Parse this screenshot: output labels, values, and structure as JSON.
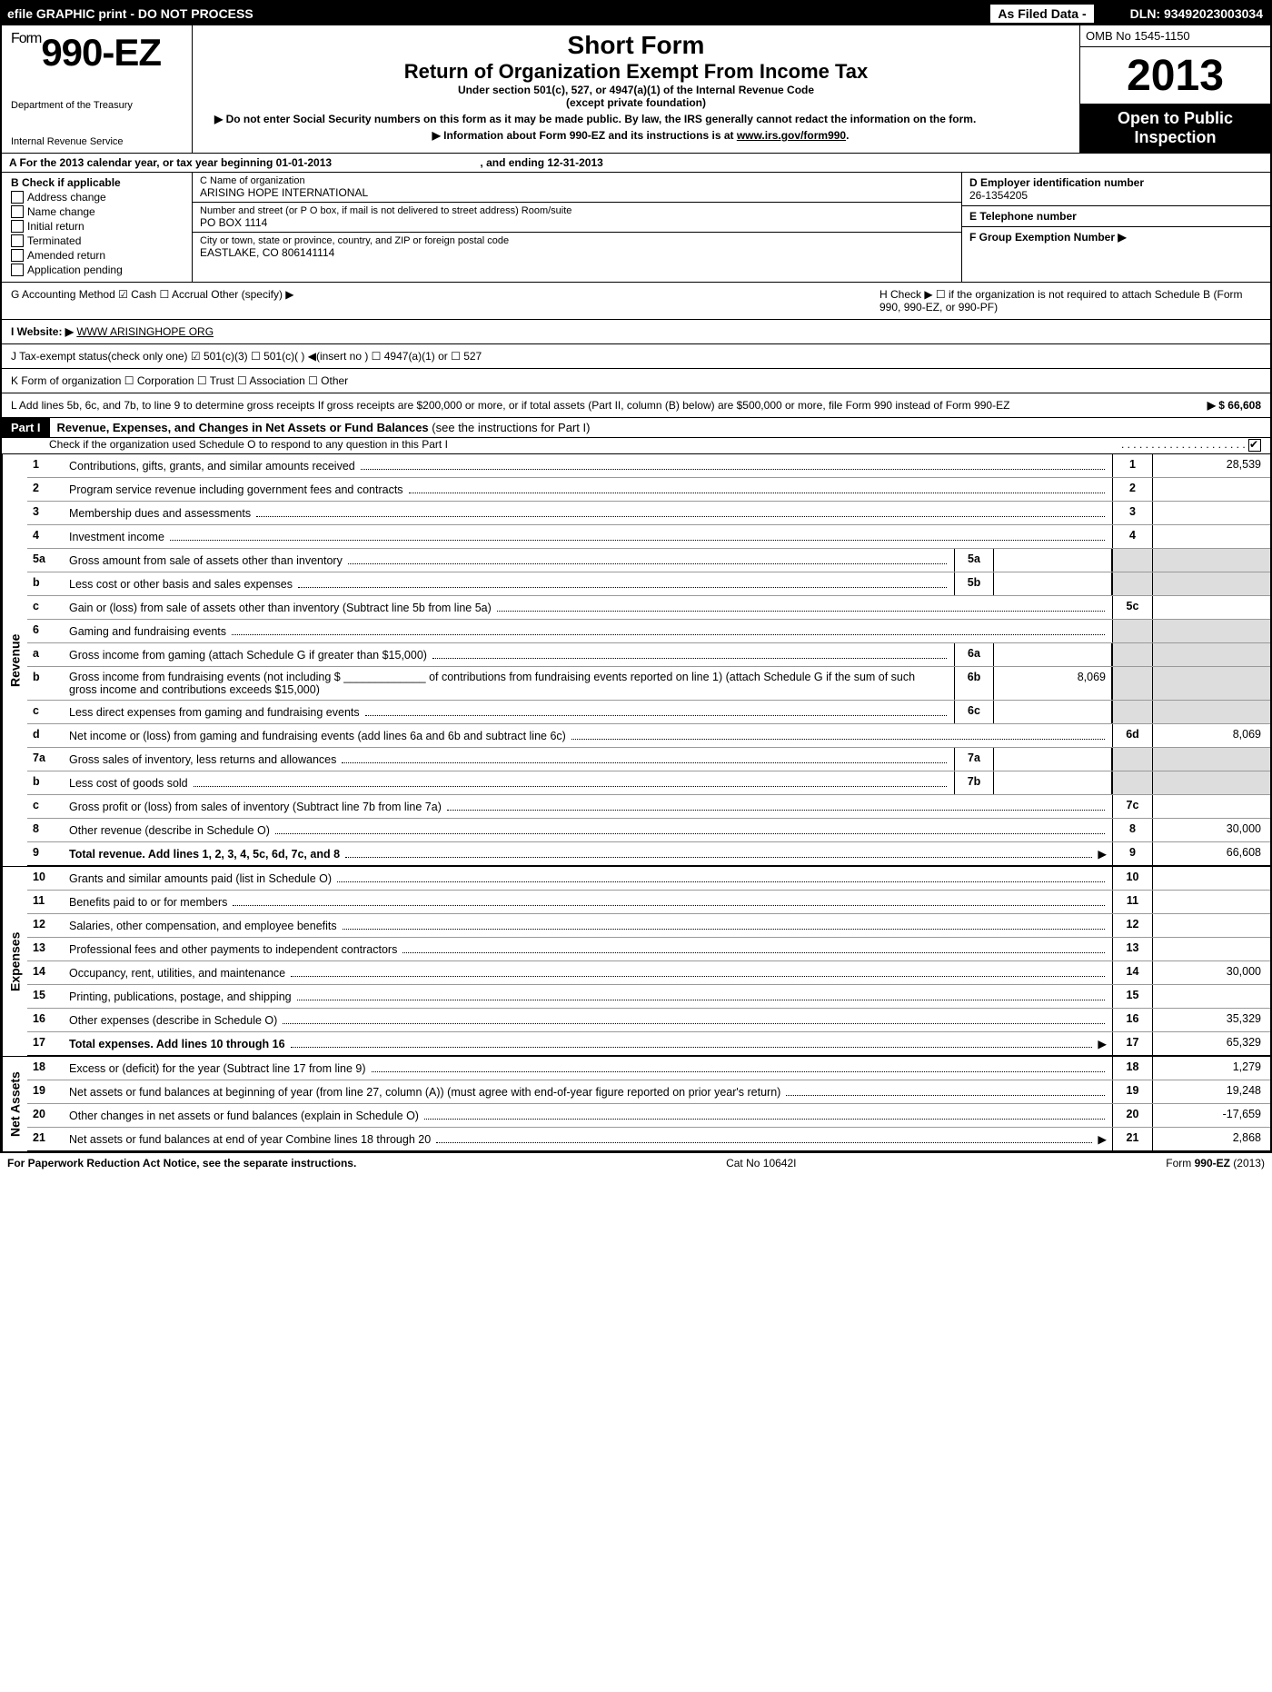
{
  "topbar": {
    "left": "efile GRAPHIC print - DO NOT PROCESS",
    "mid": "As Filed Data -",
    "right": "DLN: 93492023003034"
  },
  "header": {
    "form_prefix": "Form",
    "form_number": "990-EZ",
    "dept1": "Department of the Treasury",
    "dept2": "Internal Revenue Service",
    "title1": "Short Form",
    "title2": "Return of Organization Exempt From Income Tax",
    "sub1": "Under section 501(c), 527, or 4947(a)(1) of the Internal Revenue Code",
    "sub2": "(except private foundation)",
    "note1": "Do not enter Social Security numbers on this form as it may be made public. By law, the IRS generally cannot redact the information on the form.",
    "note2": "Information about Form 990-EZ and its instructions is at ",
    "note2_link": "www.irs.gov/form990",
    "omb": "OMB No  1545-1150",
    "year": "2013",
    "inspect1": "Open to Public",
    "inspect2": "Inspection"
  },
  "rowA": {
    "label": "A  For the 2013 calendar year, or tax year beginning 01-01-2013",
    "ending": ", and ending 12-31-2013"
  },
  "sectionB": {
    "title": "B  Check if applicable",
    "items": [
      "Address change",
      "Name change",
      "Initial return",
      "Terminated",
      "Amended return",
      "Application pending"
    ]
  },
  "sectionC": {
    "name_lbl": "C Name of organization",
    "name": "ARISING HOPE INTERNATIONAL",
    "street_lbl": "Number and street (or P  O  box, if mail is not delivered to street address) Room/suite",
    "street": "PO BOX 1114",
    "city_lbl": "City or town, state or province, country, and ZIP or foreign postal code",
    "city": "EASTLAKE, CO   806141114"
  },
  "sectionD": {
    "lbl": "D Employer identification number",
    "val": "26-1354205"
  },
  "sectionE": {
    "lbl": "E Telephone number",
    "val": ""
  },
  "sectionF": {
    "lbl": "F Group Exemption Number   ▶",
    "val": ""
  },
  "rowG": "G Accounting Method      ☑ Cash   ☐ Accrual    Other (specify) ▶",
  "rowH": "H   Check ▶  ☐  if the organization is not required to attach Schedule B (Form 990, 990-EZ, or 990-PF)",
  "rowI": {
    "lbl": "I Website: ▶ ",
    "val": "WWW ARISINGHOPE ORG"
  },
  "rowJ": "J Tax-exempt status(check only one) ☑ 501(c)(3)  ☐ 501(c)(  ) ◀(insert no ) ☐ 4947(a)(1) or ☐ 527",
  "rowK": "K Form of organization    ☐ Corporation  ☐ Trust  ☐ Association  ☐ Other",
  "rowL": {
    "txt": "L Add lines 5b, 6c, and 7b, to line 9 to determine gross receipts  If gross receipts are $200,000 or more, or if total assets (Part II, column (B) below) are $500,000 or more, file Form 990 instead of Form 990-EZ",
    "val": "▶ $ 66,608"
  },
  "partI": {
    "tag": "Part I",
    "title": "Revenue, Expenses, and Changes in Net Assets or Fund Balances",
    "note": "(see the instructions for Part I)",
    "sub": "Check if the organization used Schedule O to respond to any question in this Part I"
  },
  "sections": [
    {
      "side": "Revenue",
      "lines": [
        {
          "n": "1",
          "txt": "Contributions, gifts, grants, and similar amounts received",
          "box": "1",
          "val": "28,539"
        },
        {
          "n": "2",
          "txt": "Program service revenue including government fees and contracts",
          "box": "2",
          "val": ""
        },
        {
          "n": "3",
          "txt": "Membership dues and assessments",
          "box": "3",
          "val": ""
        },
        {
          "n": "4",
          "txt": "Investment income",
          "box": "4",
          "val": ""
        },
        {
          "n": "5a",
          "txt": "Gross amount from sale of assets other than inventory",
          "inset_box": "5a",
          "inset_val": "",
          "grey": true
        },
        {
          "n": "b",
          "txt": "Less  cost or other basis and sales expenses",
          "inset_box": "5b",
          "inset_val": "",
          "grey": true
        },
        {
          "n": "c",
          "txt": "Gain or (loss) from sale of assets other than inventory (Subtract line 5b from line 5a)",
          "box": "5c",
          "val": ""
        },
        {
          "n": "6",
          "txt": "Gaming and fundraising events",
          "grey": true,
          "noboxes": true
        },
        {
          "n": "a",
          "txt": "Gross income from gaming (attach Schedule G if greater than $15,000)",
          "inset_box": "6a",
          "inset_val": "",
          "grey": true
        },
        {
          "n": "b",
          "txt": "Gross income from fundraising events (not including $ _____________ of contributions from fundraising events reported on line 1) (attach Schedule G if the sum of such gross income and contributions exceeds $15,000)",
          "inset_box": "6b",
          "inset_val": "8,069",
          "grey": true
        },
        {
          "n": "c",
          "txt": "Less  direct expenses from gaming and fundraising events",
          "inset_box": "6c",
          "inset_val": "",
          "grey": true
        },
        {
          "n": "d",
          "txt": "Net income or (loss) from gaming and fundraising events (add lines 6a and 6b and subtract line 6c)",
          "box": "6d",
          "val": "8,069"
        },
        {
          "n": "7a",
          "txt": "Gross sales of inventory, less returns and allowances",
          "inset_box": "7a",
          "inset_val": "",
          "grey": true
        },
        {
          "n": "b",
          "txt": "Less  cost of goods sold",
          "inset_box": "7b",
          "inset_val": "",
          "grey": true
        },
        {
          "n": "c",
          "txt": "Gross profit or (loss) from sales of inventory (Subtract line 7b from line 7a)",
          "box": "7c",
          "val": ""
        },
        {
          "n": "8",
          "txt": "Other revenue (describe in Schedule O)",
          "box": "8",
          "val": "30,000"
        },
        {
          "n": "9",
          "txt": "Total revenue. Add lines 1, 2, 3, 4, 5c, 6d, 7c, and 8",
          "box": "9",
          "val": "66,608",
          "bold": true,
          "arrow": true
        }
      ]
    },
    {
      "side": "Expenses",
      "lines": [
        {
          "n": "10",
          "txt": "Grants and similar amounts paid (list in Schedule O)",
          "box": "10",
          "val": ""
        },
        {
          "n": "11",
          "txt": "Benefits paid to or for members",
          "box": "11",
          "val": ""
        },
        {
          "n": "12",
          "txt": "Salaries, other compensation, and employee benefits",
          "box": "12",
          "val": ""
        },
        {
          "n": "13",
          "txt": "Professional fees and other payments to independent contractors",
          "box": "13",
          "val": ""
        },
        {
          "n": "14",
          "txt": "Occupancy, rent, utilities, and maintenance",
          "box": "14",
          "val": "30,000"
        },
        {
          "n": "15",
          "txt": "Printing, publications, postage, and shipping",
          "box": "15",
          "val": ""
        },
        {
          "n": "16",
          "txt": "Other expenses (describe in Schedule O)",
          "box": "16",
          "val": "35,329"
        },
        {
          "n": "17",
          "txt": "Total expenses. Add lines 10 through 16",
          "box": "17",
          "val": "65,329",
          "bold": true,
          "arrow": true
        }
      ]
    },
    {
      "side": "Net Assets",
      "lines": [
        {
          "n": "18",
          "txt": "Excess or (deficit) for the year (Subtract line 17 from line 9)",
          "box": "18",
          "val": "1,279"
        },
        {
          "n": "19",
          "txt": "Net assets or fund balances at beginning of year (from line 27, column (A)) (must agree with end-of-year figure reported on prior year's return)",
          "box": "19",
          "val": "19,248"
        },
        {
          "n": "20",
          "txt": "Other changes in net assets or fund balances (explain in Schedule O)",
          "box": "20",
          "val": "-17,659"
        },
        {
          "n": "21",
          "txt": "Net assets or fund balances at end of year  Combine lines 18 through 20",
          "box": "21",
          "val": "2,868",
          "arrow": true
        }
      ]
    }
  ],
  "footer": {
    "left": "For Paperwork Reduction Act Notice, see the separate instructions.",
    "mid": "Cat  No  10642I",
    "right": "Form 990-EZ (2013)"
  }
}
